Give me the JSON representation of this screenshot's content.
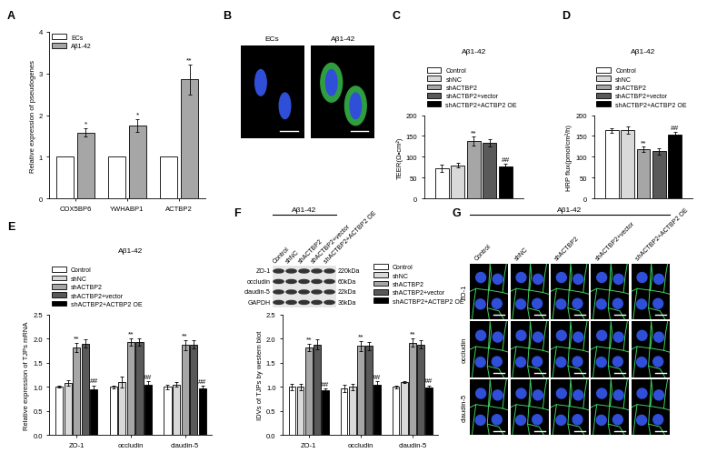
{
  "chart_data": [
    {
      "panel": "A",
      "type": "bar",
      "y_label": "Relative expression of pseudogenes",
      "categories": [
        "COX5BP6",
        "YWHABP1",
        "ACTBP2"
      ],
      "series": [
        {
          "name": "ECs",
          "color": "#ffffff",
          "values": [
            1,
            1,
            1
          ]
        },
        {
          "name": "Aβ1-42",
          "color": "#a6a6a6",
          "values": [
            1.58,
            1.75,
            2.85
          ],
          "errors": [
            0.1,
            0.15,
            0.35
          ],
          "significance": [
            "*",
            "*",
            "**"
          ]
        }
      ],
      "ylim": [
        0,
        4
      ],
      "yticks": [
        0,
        1,
        2,
        3,
        4
      ],
      "legend": "upper left"
    },
    {
      "panel": "C",
      "type": "bar",
      "title": "Aβ1-42",
      "y_label": "TEER(Ω•cm²)",
      "categories": [
        null
      ],
      "tick_labels": "y",
      "series": [
        {
          "name": "Control",
          "color": "#ffffff",
          "values": [
            73
          ],
          "errors": [
            9
          ]
        },
        {
          "name": "shNC",
          "color": "#d9d9d9",
          "values": [
            80
          ],
          "errors": [
            6
          ]
        },
        {
          "name": "shACTBP2",
          "color": "#a6a6a6",
          "values": [
            138
          ],
          "errors": [
            10
          ],
          "significance": [
            "**"
          ]
        },
        {
          "name": "shACTBP2+vector",
          "color": "#595959",
          "values": [
            133
          ],
          "errors": [
            9
          ]
        },
        {
          "name": "shACTBP2+ACTBP2 OE",
          "color": "#000000",
          "values": [
            77
          ],
          "errors": [
            7
          ],
          "significance": [
            "##"
          ]
        }
      ],
      "ylim": [
        0,
        200
      ],
      "yticks": [
        0,
        50,
        100,
        150,
        200
      ],
      "legend": "lower left"
    },
    {
      "panel": "D",
      "type": "bar",
      "title": "Aβ1-42",
      "y_label": "HRP flux(pmol/cm²/h)",
      "categories": [
        null
      ],
      "tick_labels": "y",
      "series": [
        {
          "name": "Control",
          "color": "#ffffff",
          "values": [
            163
          ],
          "errors": [
            6
          ]
        },
        {
          "name": "shNC",
          "color": "#d9d9d9",
          "values": [
            164
          ],
          "errors": [
            8
          ]
        },
        {
          "name": "shACTBP2",
          "color": "#a6a6a6",
          "values": [
            118
          ],
          "errors": [
            6
          ],
          "significance": [
            "**"
          ]
        },
        {
          "name": "shACTBP2+vector",
          "color": "#595959",
          "values": [
            113
          ],
          "errors": [
            7
          ]
        },
        {
          "name": "shACTBP2+ACTBP2 OE",
          "color": "#000000",
          "values": [
            153
          ],
          "errors": [
            7
          ],
          "significance": [
            "##"
          ]
        }
      ],
      "ylim": [
        0,
        200
      ],
      "yticks": [
        0,
        50,
        100,
        150,
        200
      ],
      "legend": "lower left"
    },
    {
      "panel": "E",
      "type": "bar",
      "title": "Aβ1-42",
      "y_label": "Relative expression of TJPs mRNA",
      "categories": [
        "ZO-1",
        "occludin",
        "claudin-5"
      ],
      "series": [
        {
          "name": "Control",
          "color": "#ffffff",
          "values": [
            1,
            1,
            1
          ],
          "errors": [
            0.02,
            0.03,
            0.05
          ]
        },
        {
          "name": "shNC",
          "color": "#d9d9d9",
          "values": [
            1.08,
            1.1,
            1.05
          ],
          "errors": [
            0.06,
            0.12,
            0.05
          ]
        },
        {
          "name": "shACTBP2",
          "color": "#a6a6a6",
          "values": [
            1.82,
            1.93,
            1.87
          ],
          "errors": [
            0.1,
            0.08,
            0.1
          ],
          "significance": [
            "**",
            "**",
            "**"
          ]
        },
        {
          "name": "shACTBP2+vector",
          "color": "#595959",
          "values": [
            1.9,
            1.93,
            1.88
          ],
          "errors": [
            0.09,
            0.07,
            0.08
          ]
        },
        {
          "name": "shACTBP2+ACTBP2 OE",
          "color": "#000000",
          "values": [
            0.95,
            1.05,
            0.97
          ],
          "errors": [
            0.08,
            0.07,
            0.05
          ],
          "significance": [
            "##",
            "##",
            "##"
          ]
        }
      ],
      "ylim": [
        0,
        2.5
      ],
      "yticks": [
        {
          "value": 0,
          "label": "0.0"
        },
        0.5,
        {
          "value": 1,
          "label": "1.0"
        },
        1.5,
        {
          "value": 2,
          "label": "2.0"
        },
        2.5
      ],
      "legend": "lower left"
    },
    {
      "panel": "F",
      "type": "bar",
      "y_label": "IDVs of TJPs by western blot",
      "categories": [
        "ZO-1",
        "occludin",
        "claudin-5"
      ],
      "series": [
        {
          "name": "Control",
          "color": "#ffffff",
          "values": [
            1,
            0.97,
            1
          ],
          "errors": [
            0.06,
            0.08,
            0.03
          ]
        },
        {
          "name": "shNC",
          "color": "#d9d9d9",
          "values": [
            1,
            1,
            1.1
          ],
          "errors": [
            0.07,
            0.07,
            0.02
          ]
        },
        {
          "name": "shACTBP2",
          "color": "#a6a6a6",
          "values": [
            1.82,
            1.85,
            1.92
          ],
          "errors": [
            0.07,
            0.1,
            0.09
          ],
          "significance": [
            "**",
            "**",
            "**"
          ]
        },
        {
          "name": "shACTBP2+vector",
          "color": "#595959",
          "values": [
            1.88,
            1.85,
            1.88
          ],
          "errors": [
            0.1,
            0.09,
            0.08
          ]
        },
        {
          "name": "shACTBP2+ACTBP2 OE",
          "color": "#000000",
          "values": [
            0.93,
            1.05,
            0.98
          ],
          "errors": [
            0.03,
            0.07,
            0.05
          ],
          "significance": [
            "##",
            "##",
            "##"
          ]
        }
      ],
      "ylim": [
        0,
        2.5
      ],
      "yticks": [
        {
          "value": 0,
          "label": "0.0"
        },
        0.5,
        {
          "value": 1,
          "label": "1.0"
        },
        1.5,
        {
          "value": 2,
          "label": "2.0"
        },
        2.5
      ],
      "legend": "upper left"
    }
  ],
  "figure_panels": {
    "micrograph": {
      "panel": "B",
      "columns": [
        "ECs",
        "Aβ1-42"
      ]
    },
    "blot": {
      "header": "Aβ1-42",
      "lanes": [
        "Control",
        "shNC",
        "shACTBP2",
        "shACTBP2+vector",
        "shACTBP2+ACTBP2 OE"
      ],
      "rows": [
        {
          "label": "ZO-1",
          "size": "220kDa"
        },
        {
          "label": "occludin",
          "size": "60kDa"
        },
        {
          "label": "claudin-5",
          "size": "22kDa"
        },
        {
          "label": "GAPDH",
          "size": "36kDa"
        }
      ]
    },
    "micrograph_grid": {
      "panel": "G",
      "header": "Aβ1-42",
      "columns": [
        "Control",
        "shNC",
        "shACTBP2",
        "shACTBP2+vector",
        "shACTBP2+ACTBP2 OE"
      ],
      "rows": [
        "ZO-1",
        "occludin",
        "claudin-5"
      ]
    }
  }
}
